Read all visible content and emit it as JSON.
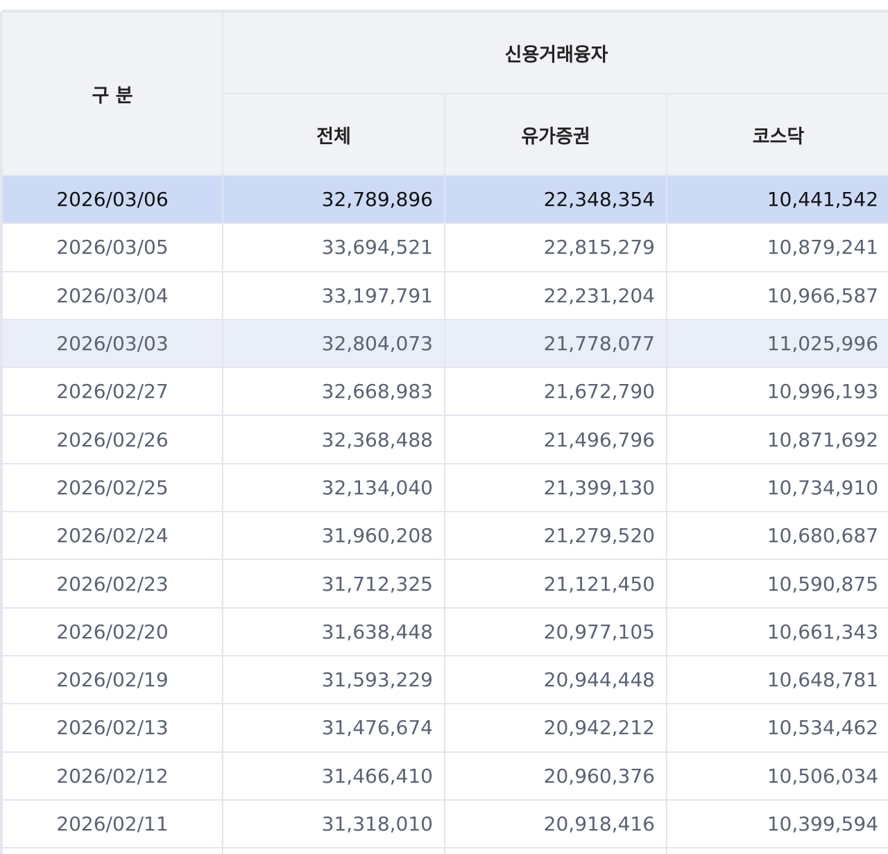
{
  "header": {
    "category_label": "구 분",
    "group_label": "신용거래융자",
    "columns": [
      "전체",
      "유가증권",
      "코스닥"
    ]
  },
  "rows": [
    {
      "date": "2026/03/06",
      "total": "32,789,896",
      "kospi": "22,348,354",
      "kosdaq": "10,441,542"
    },
    {
      "date": "2026/03/05",
      "total": "33,694,521",
      "kospi": "22,815,279",
      "kosdaq": "10,879,241"
    },
    {
      "date": "2026/03/04",
      "total": "33,197,791",
      "kospi": "22,231,204",
      "kosdaq": "10,966,587"
    },
    {
      "date": "2026/03/03",
      "total": "32,804,073",
      "kospi": "21,778,077",
      "kosdaq": "11,025,996"
    },
    {
      "date": "2026/02/27",
      "total": "32,668,983",
      "kospi": "21,672,790",
      "kosdaq": "10,996,193"
    },
    {
      "date": "2026/02/26",
      "total": "32,368,488",
      "kospi": "21,496,796",
      "kosdaq": "10,871,692"
    },
    {
      "date": "2026/02/25",
      "total": "32,134,040",
      "kospi": "21,399,130",
      "kosdaq": "10,734,910"
    },
    {
      "date": "2026/02/24",
      "total": "31,960,208",
      "kospi": "21,279,520",
      "kosdaq": "10,680,687"
    },
    {
      "date": "2026/02/23",
      "total": "31,712,325",
      "kospi": "21,121,450",
      "kosdaq": "10,590,875"
    },
    {
      "date": "2026/02/20",
      "total": "31,638,448",
      "kospi": "20,977,105",
      "kosdaq": "10,661,343"
    },
    {
      "date": "2026/02/19",
      "total": "31,593,229",
      "kospi": "20,944,448",
      "kosdaq": "10,648,781"
    },
    {
      "date": "2026/02/13",
      "total": "31,476,674",
      "kospi": "20,942,212",
      "kosdaq": "10,534,462"
    },
    {
      "date": "2026/02/12",
      "total": "31,466,410",
      "kospi": "20,960,376",
      "kosdaq": "10,506,034"
    },
    {
      "date": "2026/02/11",
      "total": "31,318,010",
      "kospi": "20,918,416",
      "kosdaq": "10,399,594"
    }
  ],
  "colors": {
    "header_bg": "#f0f2f5",
    "border": "#e3e6ee",
    "selected_row_bg": "#ccdaf6",
    "hover_row_bg": "#e9eef8",
    "body_text": "#5a6275"
  }
}
